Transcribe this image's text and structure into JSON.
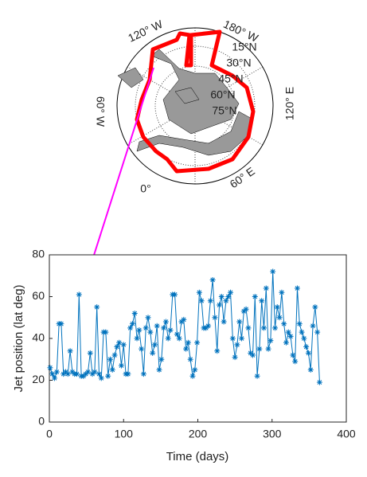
{
  "map": {
    "labels": [
      "120° W",
      "180° W",
      "15°N",
      "30°N",
      "45°N",
      "60°N",
      "75°N",
      "60° W",
      "120° E",
      "0°",
      "60° E"
    ]
  },
  "chart_data": {
    "type": "line",
    "xlabel": "Time (days)",
    "ylabel": "Jet position (lat deg)",
    "color": "#0072BD",
    "x": [
      1,
      4,
      7,
      10,
      13,
      16,
      19,
      22,
      25,
      28,
      31,
      34,
      37,
      40,
      43,
      46,
      49,
      52,
      55,
      58,
      61,
      64,
      67,
      70,
      73,
      76,
      79,
      82,
      85,
      88,
      91,
      94,
      97,
      100,
      103,
      106,
      109,
      112,
      115,
      118,
      121,
      124,
      127,
      130,
      133,
      136,
      139,
      142,
      145,
      148,
      151,
      154,
      157,
      160,
      163,
      166,
      169,
      172,
      175,
      178,
      181,
      184,
      187,
      190,
      193,
      196,
      199,
      202,
      205,
      208,
      211,
      214,
      217,
      220,
      223,
      226,
      229,
      232,
      235,
      238,
      241,
      244,
      247,
      250,
      253,
      256,
      259,
      262,
      265,
      268,
      271,
      274,
      277,
      280,
      283,
      286,
      289,
      292,
      295,
      298,
      301,
      304,
      307,
      310,
      313,
      316,
      319,
      322,
      325,
      328,
      331,
      334,
      337,
      340,
      343,
      346,
      349,
      352,
      355,
      358,
      361,
      364
    ],
    "values": [
      26,
      23,
      21,
      24,
      47,
      47,
      23,
      24,
      23,
      34,
      24,
      23,
      23,
      61,
      22,
      22,
      23,
      24,
      33,
      23,
      24,
      55,
      23,
      21,
      43,
      43,
      22,
      30,
      25,
      32,
      36,
      38,
      27,
      37,
      23,
      23,
      45,
      47,
      52,
      40,
      44,
      35,
      23,
      45,
      50,
      43,
      33,
      37,
      46,
      25,
      30,
      45,
      48,
      40,
      44,
      61,
      61,
      42,
      40,
      48,
      49,
      35,
      38,
      30,
      22,
      25,
      38,
      62,
      58,
      45,
      45,
      46,
      58,
      68,
      50,
      34,
      56,
      60,
      48,
      58,
      60,
      62,
      40,
      31,
      37,
      48,
      40,
      53,
      54,
      45,
      33,
      32,
      60,
      22,
      35,
      58,
      45,
      64,
      35,
      39,
      72,
      45,
      55,
      50,
      62,
      47,
      38,
      43,
      41,
      32,
      29,
      64,
      47,
      43,
      40,
      36,
      33,
      25,
      46,
      55,
      43,
      19
    ],
    "xlim": [
      0,
      400
    ],
    "xticks": [
      0,
      100,
      200,
      300,
      400
    ],
    "ylim": [
      0,
      80
    ],
    "yticks": [
      0,
      20,
      40,
      60,
      80
    ]
  }
}
